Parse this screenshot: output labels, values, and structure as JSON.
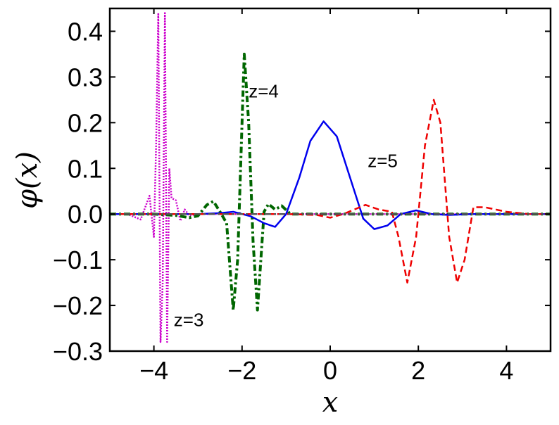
{
  "chart_data": {
    "type": "line",
    "xlabel": "x",
    "ylabel": "φ(x)",
    "xlim": [
      -5,
      5
    ],
    "ylim": [
      -0.3,
      0.45
    ],
    "x_ticks": [
      -4,
      -2,
      0,
      2,
      4
    ],
    "x_tick_labels": [
      "−4",
      "−2",
      "0",
      "2",
      "4"
    ],
    "y_ticks": [
      -0.3,
      -0.2,
      -0.1,
      0.0,
      0.1,
      0.2,
      0.3,
      0.4
    ],
    "y_tick_labels": [
      "−0.3",
      "−0.2",
      "−0.1",
      "0.0",
      "0.1",
      "0.2",
      "0.3",
      "0.4"
    ],
    "grid": false,
    "annotations": [
      {
        "text": "z=3",
        "x": -3.55,
        "y": -0.245
      },
      {
        "text": "z=4",
        "x": -1.85,
        "y": 0.255
      },
      {
        "text": "z=5",
        "x": 0.85,
        "y": 0.103
      }
    ],
    "series": [
      {
        "style": "dotted",
        "color": "#cc00cc",
        "x": [
          -5.0,
          -4.6,
          -4.3,
          -4.1,
          -4.0,
          -3.95,
          -3.9,
          -3.85,
          -3.8,
          -3.75,
          -3.7,
          -3.65,
          -3.6,
          -3.5,
          -3.4,
          -3.3,
          -3.2,
          -3.0,
          -2.6,
          -2.0,
          -1.0,
          0.0,
          1.0,
          2.0,
          3.0,
          4.0,
          5.0
        ],
        "y": [
          0.0,
          0.0,
          -0.012,
          0.04,
          -0.05,
          0.15,
          0.44,
          -0.28,
          -0.15,
          0.44,
          -0.28,
          0.1,
          0.035,
          0.03,
          -0.015,
          0.01,
          -0.003,
          0.0,
          0.0,
          0.0,
          0.0,
          0.0,
          0.0,
          0.0,
          0.0,
          0.0,
          0.0
        ]
      },
      {
        "style": "dashdot",
        "color": "#006600",
        "x": [
          -5.0,
          -4.0,
          -3.5,
          -3.2,
          -3.0,
          -2.8,
          -2.65,
          -2.5,
          -2.35,
          -2.2,
          -2.1,
          -1.95,
          -1.85,
          -1.75,
          -1.65,
          -1.5,
          -1.4,
          -1.25,
          -1.1,
          -0.9,
          0.0,
          2.0,
          5.0
        ],
        "y": [
          0.0,
          0.0,
          -0.003,
          -0.008,
          -0.004,
          0.02,
          0.028,
          0.005,
          -0.02,
          -0.21,
          -0.1,
          0.35,
          0.2,
          -0.06,
          -0.21,
          0.005,
          0.022,
          0.01,
          0.018,
          0.0,
          0.0,
          0.0,
          0.0
        ]
      },
      {
        "style": "solid",
        "color": "#0000ee",
        "x": [
          -5.0,
          -3.0,
          -2.5,
          -2.2,
          -1.8,
          -1.5,
          -1.25,
          -1.0,
          -0.7,
          -0.45,
          -0.15,
          0.15,
          0.45,
          0.75,
          1.0,
          1.3,
          1.6,
          1.95,
          2.3,
          2.7,
          3.2,
          4.0,
          5.0
        ],
        "y": [
          0.0,
          0.0,
          0.002,
          0.005,
          -0.005,
          -0.02,
          -0.028,
          0.0,
          0.08,
          0.16,
          0.203,
          0.17,
          0.08,
          -0.01,
          -0.033,
          -0.025,
          0.0,
          0.008,
          0.0,
          -0.002,
          0.0,
          0.0,
          0.0
        ]
      },
      {
        "style": "dashed",
        "color": "#ee0000",
        "x": [
          -5.0,
          -1.0,
          -0.3,
          0.0,
          0.3,
          0.8,
          1.1,
          1.4,
          1.55,
          1.75,
          1.95,
          2.15,
          2.35,
          2.5,
          2.7,
          2.88,
          3.05,
          3.25,
          3.5,
          4.0,
          4.5,
          5.0
        ],
        "y": [
          0.0,
          0.0,
          -0.002,
          -0.008,
          0.0,
          0.02,
          0.01,
          0.005,
          -0.05,
          -0.15,
          -0.05,
          0.15,
          0.25,
          0.2,
          -0.05,
          -0.15,
          -0.1,
          0.015,
          0.015,
          0.005,
          0.0,
          0.0
        ]
      },
      {
        "style": "dashdot",
        "color": "#555555",
        "x": [
          -5.0,
          5.0
        ],
        "y": [
          0.0,
          0.0
        ]
      }
    ]
  }
}
